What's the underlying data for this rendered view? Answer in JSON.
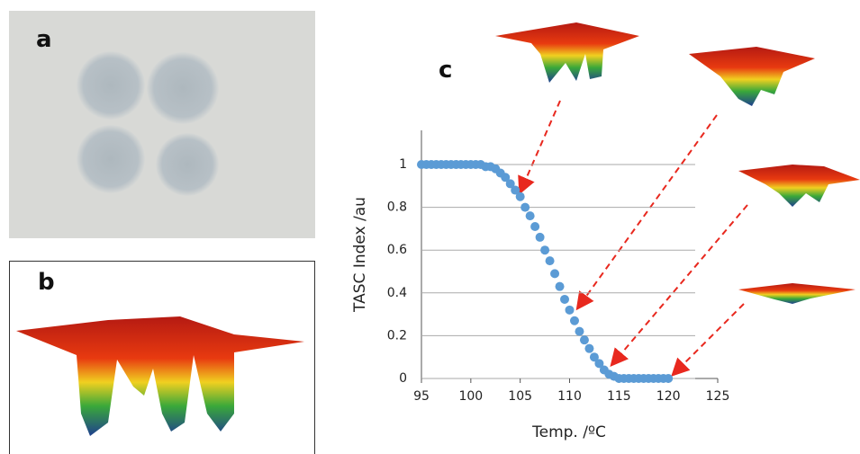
{
  "panels": {
    "a": "a",
    "b": "b",
    "c": "c"
  },
  "chart_data": {
    "type": "scatter",
    "x_label": "Temp. /ºC",
    "y_label": "TASC Index /au",
    "xlim": [
      95,
      125
    ],
    "xticks": [
      95,
      100,
      105,
      110,
      115,
      120,
      125
    ],
    "ylim": [
      0,
      1
    ],
    "yticks": [
      0,
      0.2,
      0.4,
      0.6,
      0.8,
      1
    ],
    "grid": true,
    "color": "#5b9bd5",
    "x": [
      95,
      95.5,
      96,
      96.5,
      97,
      97.5,
      98,
      98.5,
      99,
      99.5,
      100,
      100.5,
      101,
      101.5,
      102,
      102.5,
      103,
      103.5,
      104,
      104.5,
      105,
      105.5,
      106,
      106.5,
      107,
      107.5,
      108,
      108.5,
      109,
      109.5,
      110,
      110.5,
      111,
      111.5,
      112,
      112.5,
      113,
      113.5,
      114,
      114.5,
      115,
      115.5,
      116,
      116.5,
      117,
      117.5,
      118,
      118.5,
      119,
      119.5,
      120
    ],
    "values": [
      1,
      1,
      1,
      1,
      1,
      1,
      1,
      1,
      1,
      1,
      1,
      1,
      1,
      0.99,
      0.99,
      0.98,
      0.96,
      0.94,
      0.91,
      0.88,
      0.85,
      0.8,
      0.76,
      0.71,
      0.66,
      0.6,
      0.55,
      0.49,
      0.43,
      0.37,
      0.32,
      0.27,
      0.22,
      0.18,
      0.14,
      0.1,
      0.07,
      0.04,
      0.02,
      0.01,
      0,
      0,
      0,
      0,
      0,
      0,
      0,
      0,
      0,
      0,
      0
    ]
  }
}
